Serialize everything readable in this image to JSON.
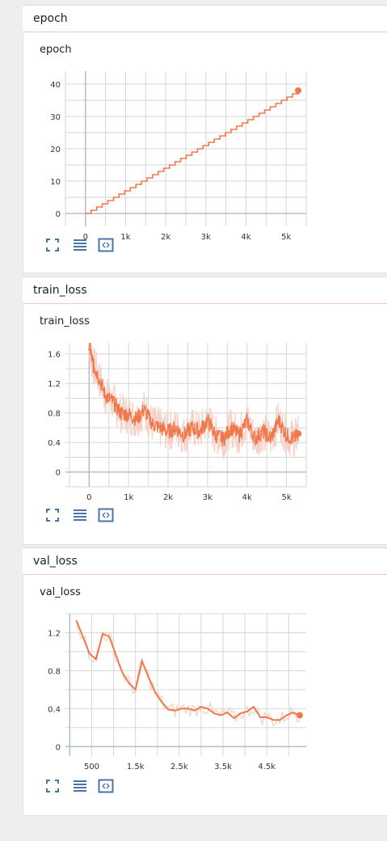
{
  "panels": [
    {
      "id": "epoch",
      "header": "epoch",
      "title": "epoch",
      "icons": [
        "fullscreen-icon",
        "list-icon",
        "fit-domain-icon"
      ]
    },
    {
      "id": "train_loss",
      "header": "train_loss",
      "title": "train_loss",
      "icons": [
        "fullscreen-icon",
        "list-icon",
        "fit-domain-icon"
      ]
    },
    {
      "id": "val_loss",
      "header": "val_loss",
      "title": "val_loss",
      "icons": [
        "fullscreen-icon",
        "list-icon",
        "fit-domain-icon"
      ]
    }
  ],
  "colors": {
    "series": "#f0784b",
    "raw": "#f3d2c8",
    "grid": "#d6d6d6",
    "axis": "#a9b8c8",
    "icon": "#4a74a8"
  },
  "chart_data": [
    {
      "type": "line",
      "title": "epoch",
      "xlabel": "",
      "ylabel": "",
      "xlim": [
        -500,
        5500
      ],
      "ylim": [
        -4,
        44
      ],
      "xticks": [
        "0",
        "1k",
        "2k",
        "3k",
        "4k",
        "5k"
      ],
      "xtick_values": [
        0,
        1000,
        2000,
        3000,
        4000,
        5000
      ],
      "yticks": [
        "0",
        "10",
        "20",
        "30",
        "40"
      ],
      "ytick_values": [
        0,
        10,
        20,
        30,
        40
      ],
      "grid": true,
      "series": [
        {
          "x": [
            0,
            5300
          ],
          "y": [
            0,
            38
          ],
          "step": true,
          "steps": 38
        }
      ]
    },
    {
      "type": "line",
      "title": "train_loss",
      "xlabel": "",
      "ylabel": "",
      "xlim": [
        -600,
        5500
      ],
      "ylim": [
        -0.2,
        1.75
      ],
      "xticks": [
        "0",
        "1k",
        "2k",
        "3k",
        "4k",
        "5k"
      ],
      "xtick_values": [
        0,
        1000,
        2000,
        3000,
        4000,
        5000
      ],
      "yticks": [
        "0",
        "0.4",
        "0.8",
        "1.2",
        "1.6"
      ],
      "ytick_values": [
        0,
        0.4,
        0.8,
        1.2,
        1.6
      ],
      "grid": true,
      "series": [
        {
          "x": [
            0,
            100,
            200,
            400,
            600,
            800,
            1000,
            1200,
            1400,
            1600,
            1800,
            2000,
            2200,
            2400,
            2600,
            2800,
            3000,
            3200,
            3400,
            3600,
            3800,
            4000,
            4200,
            4400,
            4600,
            4800,
            5000,
            5200,
            5300
          ],
          "y": [
            1.75,
            1.45,
            1.35,
            1.05,
            0.95,
            0.8,
            0.78,
            0.72,
            0.85,
            0.65,
            0.6,
            0.55,
            0.6,
            0.5,
            0.6,
            0.55,
            0.7,
            0.5,
            0.45,
            0.6,
            0.5,
            0.7,
            0.45,
            0.55,
            0.45,
            0.7,
            0.5,
            0.45,
            0.52
          ]
        }
      ]
    },
    {
      "type": "line",
      "title": "val_loss",
      "xlabel": "",
      "ylabel": "",
      "xlim": [
        -100,
        5400
      ],
      "ylim": [
        -0.1,
        1.4
      ],
      "xticks": [
        "500",
        "1.5k",
        "2.5k",
        "3.5k",
        "4.5k"
      ],
      "xtick_values": [
        500,
        1500,
        2500,
        3500,
        4500
      ],
      "yticks": [
        "0",
        "0.4",
        "0.8",
        "1.2"
      ],
      "ytick_values": [
        0,
        0.4,
        0.8,
        1.2
      ],
      "grid": true,
      "series": [
        {
          "x": [
            150,
            450,
            600,
            750,
            900,
            1050,
            1200,
            1350,
            1500,
            1650,
            1800,
            1950,
            2100,
            2250,
            2400,
            2550,
            2700,
            2850,
            3000,
            3150,
            3300,
            3450,
            3600,
            3750,
            3900,
            4050,
            4200,
            4350,
            4500,
            4650,
            4800,
            4950,
            5100,
            5250
          ],
          "y": [
            1.33,
            0.98,
            0.92,
            1.19,
            1.16,
            0.97,
            0.78,
            0.67,
            0.6,
            0.9,
            0.73,
            0.57,
            0.47,
            0.39,
            0.38,
            0.4,
            0.4,
            0.38,
            0.42,
            0.4,
            0.35,
            0.33,
            0.36,
            0.3,
            0.35,
            0.37,
            0.42,
            0.31,
            0.31,
            0.28,
            0.28,
            0.33,
            0.36,
            0.33
          ]
        }
      ]
    }
  ]
}
